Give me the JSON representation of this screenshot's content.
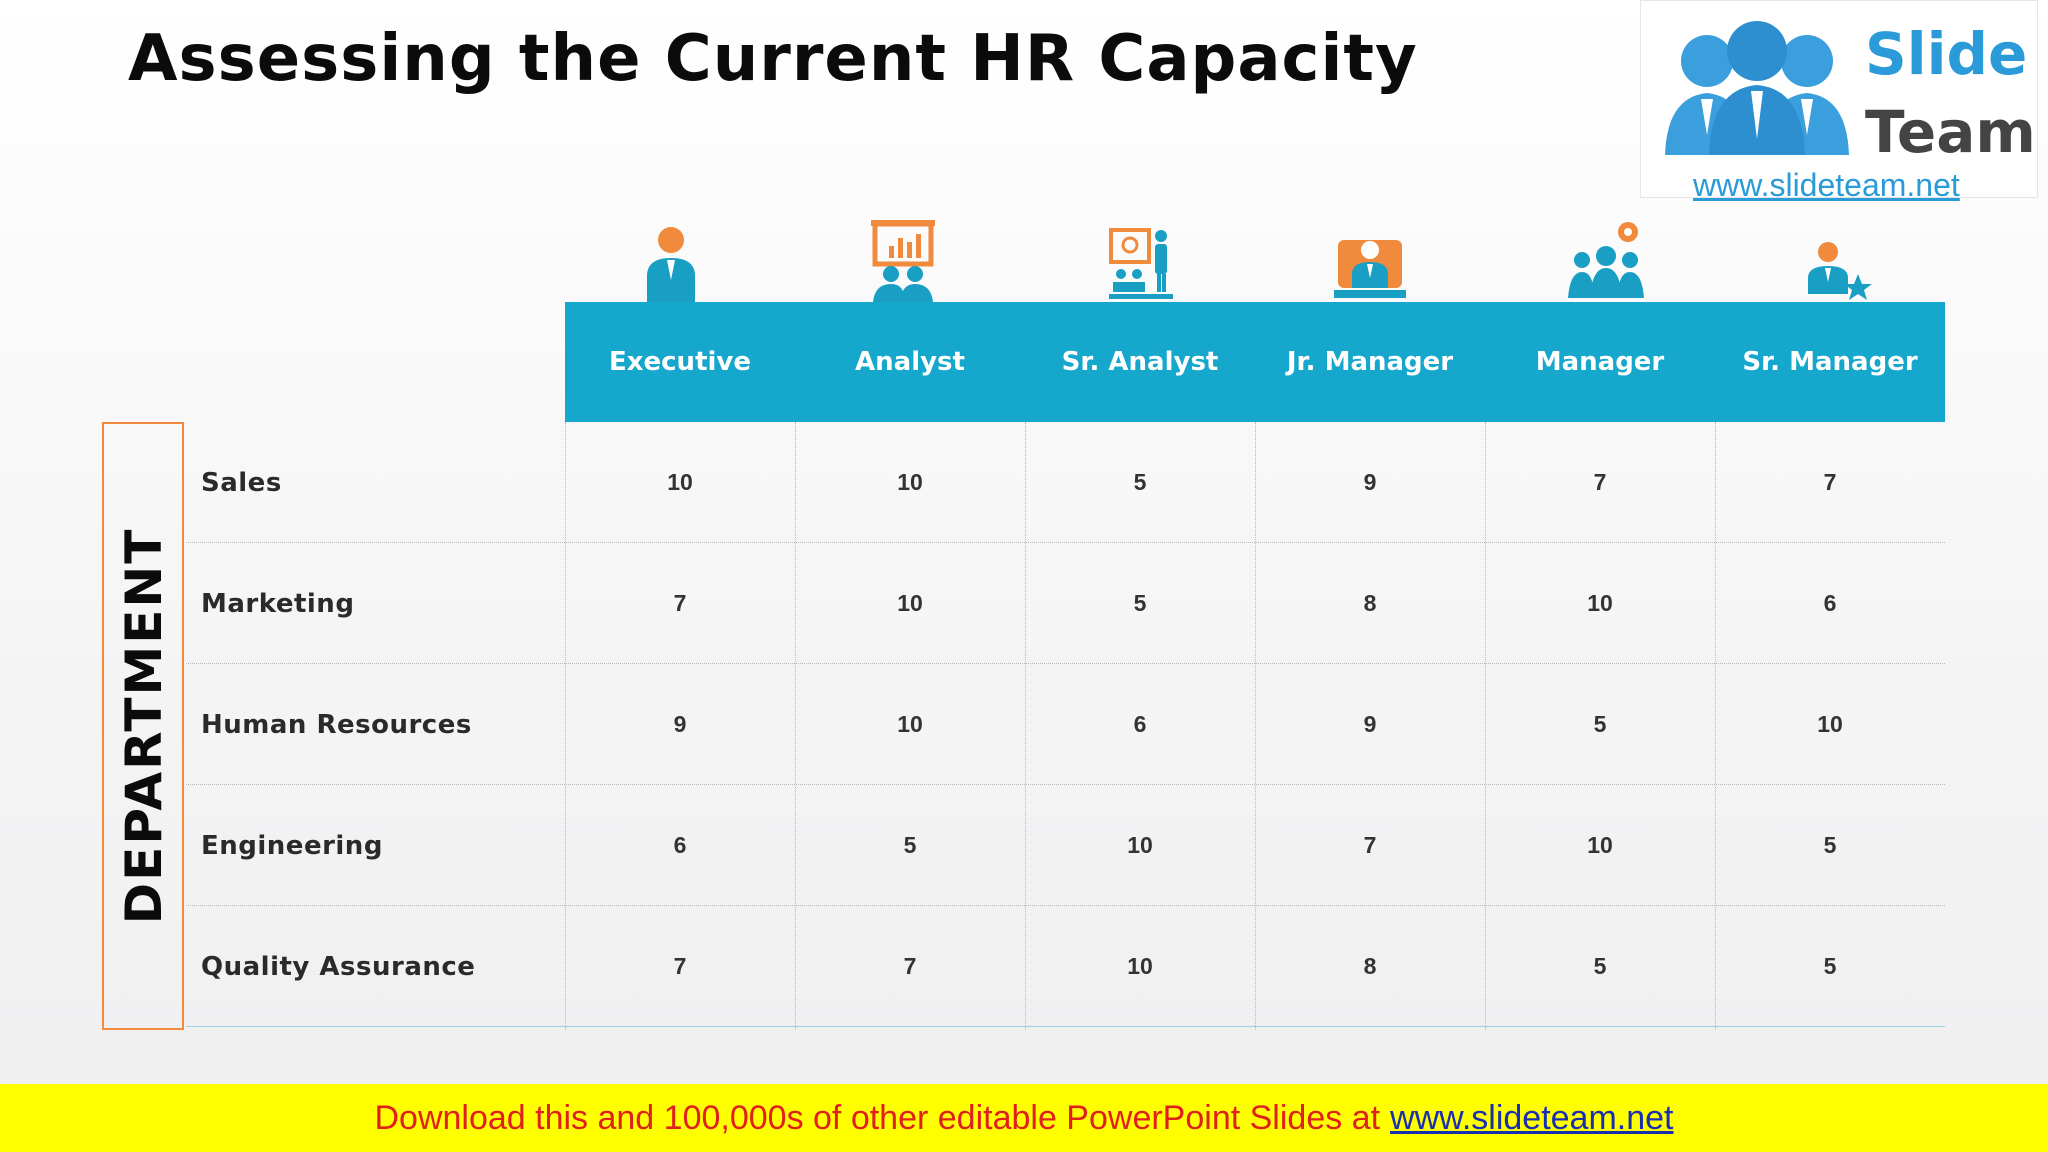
{
  "slide": {
    "title": "Assessing the Current HR Capacity",
    "department_label": "DEPARTMENT"
  },
  "logo": {
    "word1": "Slide",
    "word2": "Team",
    "url": "www.slideteam.net"
  },
  "table": {
    "columns": [
      {
        "label": "Executive",
        "icon": "executive-icon"
      },
      {
        "label": "Analyst",
        "icon": "presentation-board-icon"
      },
      {
        "label": "Sr. Analyst",
        "icon": "trainer-presentation-icon"
      },
      {
        "label": "Jr. Manager",
        "icon": "desk-manager-icon"
      },
      {
        "label": "Manager",
        "icon": "team-gear-icon"
      },
      {
        "label": "Sr. Manager",
        "icon": "person-star-icon"
      }
    ],
    "rows": [
      {
        "label": "Sales",
        "values": [
          "10",
          "10",
          "5",
          "9",
          "7",
          "7"
        ]
      },
      {
        "label": "Marketing",
        "values": [
          "7",
          "10",
          "5",
          "8",
          "10",
          "6"
        ]
      },
      {
        "label": "Human Resources",
        "values": [
          "9",
          "10",
          "6",
          "9",
          "5",
          "10"
        ]
      },
      {
        "label": "Engineering",
        "values": [
          "6",
          "5",
          "10",
          "7",
          "10",
          "5"
        ]
      },
      {
        "label": "Quality Assurance",
        "values": [
          "7",
          "7",
          "10",
          "8",
          "5",
          "5"
        ]
      }
    ]
  },
  "banner": {
    "text": "Download this and 100,000s of other editable PowerPoint Slides at",
    "link": "www.slideteam.net"
  },
  "colors": {
    "header": "#16a7cc",
    "accent_orange": "#f08a3c",
    "icon_blue": "#1a9fc4",
    "banner_bg": "#ffff00",
    "banner_text": "#e0201c"
  }
}
